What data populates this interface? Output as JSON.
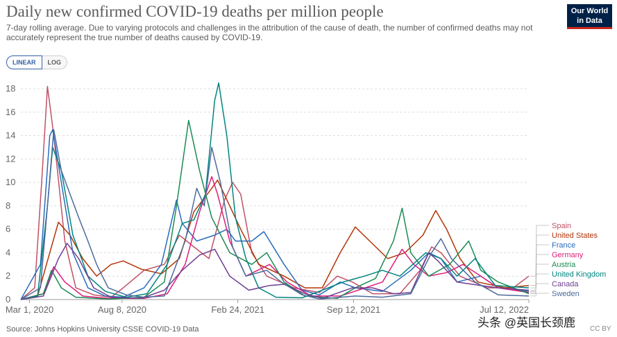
{
  "header": {
    "title": "Daily new confirmed COVID-19 deaths per million people",
    "subtitle": "7-day rolling average. Due to varying protocols and challenges in the attribution of the cause of death, the number of confirmed deaths may not accurately represent the true number of deaths caused by COVID-19.",
    "logo": [
      "Our World",
      "in Data"
    ]
  },
  "toggle": {
    "linear": "LINEAR",
    "log": "LOG",
    "selected": "LINEAR"
  },
  "footer": {
    "source": "Source: Johns Hopkins University CSSE COVID-19 Data",
    "license": "CC BY"
  },
  "watermark": "头条 @英国长颈鹿",
  "chart_data": {
    "type": "line",
    "x_ticks": [
      "Mar 1, 2020",
      "Aug 8, 2020",
      "Feb 24, 2021",
      "Sep 12, 2021",
      "Jul 12, 2022"
    ],
    "x_range": [
      "2020-02-15",
      "2022-07-12"
    ],
    "ylim": [
      0,
      18
    ],
    "y_ticks": [
      0,
      2,
      4,
      6,
      8,
      10,
      12,
      14,
      16,
      18
    ],
    "grid": "horizontal dashed",
    "legend_position": "right",
    "series": [
      {
        "name": "Spain",
        "color": "#c15065",
        "points": [
          [
            "2020-02-15",
            0
          ],
          [
            "2020-03-10",
            1
          ],
          [
            "2020-03-22",
            10
          ],
          [
            "2020-04-01",
            18.2
          ],
          [
            "2020-04-12",
            14
          ],
          [
            "2020-05-01",
            5
          ],
          [
            "2020-05-20",
            1
          ],
          [
            "2020-06-20",
            0.4
          ],
          [
            "2020-07-20",
            0.2
          ],
          [
            "2020-08-10",
            1
          ],
          [
            "2020-09-15",
            2.5
          ],
          [
            "2020-10-20",
            3
          ],
          [
            "2020-11-15",
            5.5
          ],
          [
            "2020-12-10",
            4.5
          ],
          [
            "2021-01-05",
            3.5
          ],
          [
            "2021-02-01",
            8.5
          ],
          [
            "2021-02-15",
            10
          ],
          [
            "2021-03-01",
            9
          ],
          [
            "2021-03-20",
            4
          ],
          [
            "2021-04-15",
            2
          ],
          [
            "2021-06-01",
            1
          ],
          [
            "2021-07-15",
            0.6
          ],
          [
            "2021-08-15",
            2
          ],
          [
            "2021-09-10",
            1.5
          ],
          [
            "2021-10-15",
            0.5
          ],
          [
            "2021-12-01",
            0.5
          ],
          [
            "2022-01-05",
            2.5
          ],
          [
            "2022-01-25",
            4.5
          ],
          [
            "2022-02-10",
            4
          ],
          [
            "2022-03-15",
            2
          ],
          [
            "2022-05-01",
            1
          ],
          [
            "2022-06-15",
            1
          ],
          [
            "2022-07-12",
            2
          ]
        ]
      },
      {
        "name": "United States",
        "color": "#b13507",
        "points": [
          [
            "2020-02-15",
            0
          ],
          [
            "2020-03-15",
            0.3
          ],
          [
            "2020-04-05",
            4
          ],
          [
            "2020-04-20",
            6.6
          ],
          [
            "2020-05-10",
            5.5
          ],
          [
            "2020-06-01",
            3.5
          ],
          [
            "2020-06-25",
            2
          ],
          [
            "2020-07-20",
            3
          ],
          [
            "2020-08-10",
            3.3
          ],
          [
            "2020-09-10",
            2.6
          ],
          [
            "2020-10-15",
            2.2
          ],
          [
            "2020-11-15",
            3.5
          ],
          [
            "2020-12-10",
            7.5
          ],
          [
            "2021-01-10",
            9.5
          ],
          [
            "2021-01-20",
            10.2
          ],
          [
            "2021-02-10",
            8
          ],
          [
            "2021-03-01",
            6
          ],
          [
            "2021-04-01",
            3
          ],
          [
            "2021-05-15",
            2
          ],
          [
            "2021-06-20",
            1
          ],
          [
            "2021-07-20",
            1
          ],
          [
            "2021-08-20",
            4
          ],
          [
            "2021-09-15",
            6.2
          ],
          [
            "2021-10-10",
            5
          ],
          [
            "2021-11-10",
            3.5
          ],
          [
            "2021-12-10",
            4
          ],
          [
            "2022-01-10",
            5.5
          ],
          [
            "2022-02-01",
            7.6
          ],
          [
            "2022-02-20",
            6
          ],
          [
            "2022-03-15",
            3.5
          ],
          [
            "2022-04-15",
            1.5
          ],
          [
            "2022-06-01",
            1
          ],
          [
            "2022-07-12",
            1.2
          ]
        ]
      },
      {
        "name": "France",
        "color": "#286bbb",
        "points": [
          [
            "2020-02-15",
            0
          ],
          [
            "2020-03-20",
            3
          ],
          [
            "2020-04-05",
            14
          ],
          [
            "2020-04-10",
            14.5
          ],
          [
            "2020-04-25",
            10
          ],
          [
            "2020-05-15",
            4
          ],
          [
            "2020-06-10",
            1
          ],
          [
            "2020-07-10",
            0.3
          ],
          [
            "2020-08-10",
            0.2
          ],
          [
            "2020-09-15",
            1
          ],
          [
            "2020-10-15",
            3
          ],
          [
            "2020-11-10",
            8.5
          ],
          [
            "2020-11-20",
            6.5
          ],
          [
            "2020-12-15",
            5
          ],
          [
            "2021-01-15",
            5.5
          ],
          [
            "2021-02-05",
            6
          ],
          [
            "2021-02-20",
            5
          ],
          [
            "2021-03-20",
            5
          ],
          [
            "2021-04-10",
            5.8
          ],
          [
            "2021-05-15",
            3
          ],
          [
            "2021-06-15",
            0.8
          ],
          [
            "2021-07-15",
            0.4
          ],
          [
            "2021-08-20",
            1.5
          ],
          [
            "2021-09-15",
            1
          ],
          [
            "2021-11-01",
            0.7
          ],
          [
            "2021-12-20",
            2.5
          ],
          [
            "2022-01-20",
            4
          ],
          [
            "2022-02-10",
            3.5
          ],
          [
            "2022-03-10",
            1.5
          ],
          [
            "2022-04-20",
            2
          ],
          [
            "2022-05-20",
            1
          ],
          [
            "2022-07-12",
            0.7
          ]
        ]
      },
      {
        "name": "Germany",
        "color": "#dc1e7b",
        "points": [
          [
            "2020-02-15",
            0
          ],
          [
            "2020-03-25",
            0.5
          ],
          [
            "2020-04-12",
            2.8
          ],
          [
            "2020-05-01",
            1.5
          ],
          [
            "2020-06-01",
            0.3
          ],
          [
            "2020-07-15",
            0.1
          ],
          [
            "2020-09-15",
            0.1
          ],
          [
            "2020-10-25",
            0.5
          ],
          [
            "2020-11-25",
            3
          ],
          [
            "2020-12-20",
            7.5
          ],
          [
            "2021-01-10",
            10.5
          ],
          [
            "2021-01-20",
            9
          ],
          [
            "2021-02-10",
            5
          ],
          [
            "2021-03-10",
            2
          ],
          [
            "2021-04-20",
            3
          ],
          [
            "2021-05-20",
            1.5
          ],
          [
            "2021-07-01",
            0.3
          ],
          [
            "2021-08-20",
            0.3
          ],
          [
            "2021-09-20",
            0.8
          ],
          [
            "2021-11-01",
            1.5
          ],
          [
            "2021-12-05",
            4.3
          ],
          [
            "2021-12-25",
            3
          ],
          [
            "2022-01-20",
            2
          ],
          [
            "2022-02-20",
            2.3
          ],
          [
            "2022-03-20",
            3
          ],
          [
            "2022-04-20",
            2
          ],
          [
            "2022-05-20",
            1
          ],
          [
            "2022-07-12",
            0.6
          ]
        ]
      },
      {
        "name": "Austria",
        "color": "#1a8a53",
        "points": [
          [
            "2020-02-15",
            0
          ],
          [
            "2020-03-25",
            0.5
          ],
          [
            "2020-04-08",
            2.5
          ],
          [
            "2020-04-25",
            1
          ],
          [
            "2020-05-20",
            0.2
          ],
          [
            "2020-07-15",
            0.05
          ],
          [
            "2020-09-15",
            0.2
          ],
          [
            "2020-10-20",
            1.5
          ],
          [
            "2020-11-10",
            8
          ],
          [
            "2020-12-01",
            15.3
          ],
          [
            "2020-12-20",
            11
          ],
          [
            "2021-01-10",
            7
          ],
          [
            "2021-02-10",
            4
          ],
          [
            "2021-03-20",
            3
          ],
          [
            "2021-04-15",
            4
          ],
          [
            "2021-05-15",
            1.5
          ],
          [
            "2021-06-20",
            0.3
          ],
          [
            "2021-08-15",
            0.1
          ],
          [
            "2021-09-15",
            1
          ],
          [
            "2021-10-20",
            1.8
          ],
          [
            "2021-11-20",
            5
          ],
          [
            "2021-12-05",
            7.8
          ],
          [
            "2021-12-20",
            4
          ],
          [
            "2022-01-20",
            2
          ],
          [
            "2022-02-25",
            3
          ],
          [
            "2022-03-30",
            5
          ],
          [
            "2022-04-20",
            2.5
          ],
          [
            "2022-05-20",
            1.5
          ],
          [
            "2022-07-12",
            0.5
          ]
        ]
      },
      {
        "name": "United Kingdom",
        "color": "#00847e",
        "points": [
          [
            "2020-02-15",
            0
          ],
          [
            "2020-03-15",
            0.3
          ],
          [
            "2020-04-01",
            8
          ],
          [
            "2020-04-10",
            13
          ],
          [
            "2020-04-25",
            11
          ],
          [
            "2020-05-15",
            5.5
          ],
          [
            "2020-06-10",
            2
          ],
          [
            "2020-07-10",
            0.7
          ],
          [
            "2020-08-15",
            0.2
          ],
          [
            "2020-09-20",
            0.5
          ],
          [
            "2020-10-25",
            3
          ],
          [
            "2020-11-20",
            6.5
          ],
          [
            "2020-12-10",
            6.8
          ],
          [
            "2020-12-30",
            9
          ],
          [
            "2021-01-15",
            17
          ],
          [
            "2021-01-22",
            18.5
          ],
          [
            "2021-02-05",
            14
          ],
          [
            "2021-02-20",
            7
          ],
          [
            "2021-03-10",
            3.5
          ],
          [
            "2021-04-01",
            1
          ],
          [
            "2021-05-01",
            0.2
          ],
          [
            "2021-06-15",
            0.15
          ],
          [
            "2021-07-20",
            0.8
          ],
          [
            "2021-08-25",
            1.5
          ],
          [
            "2021-10-01",
            2
          ],
          [
            "2021-11-01",
            2.5
          ],
          [
            "2021-12-01",
            2
          ],
          [
            "2022-01-15",
            4
          ],
          [
            "2022-02-10",
            3.5
          ],
          [
            "2022-03-10",
            2
          ],
          [
            "2022-04-10",
            3.5
          ],
          [
            "2022-05-15",
            1.2
          ],
          [
            "2022-07-12",
            1
          ]
        ]
      },
      {
        "name": "Canada",
        "color": "#6d3e91",
        "points": [
          [
            "2020-02-15",
            0
          ],
          [
            "2020-03-25",
            0.3
          ],
          [
            "2020-04-20",
            3.5
          ],
          [
            "2020-05-05",
            4.8
          ],
          [
            "2020-05-25",
            3.5
          ],
          [
            "2020-06-20",
            1
          ],
          [
            "2020-07-20",
            0.2
          ],
          [
            "2020-09-10",
            0.1
          ],
          [
            "2020-10-20",
            0.8
          ],
          [
            "2020-11-20",
            2.5
          ],
          [
            "2020-12-20",
            3.8
          ],
          [
            "2021-01-15",
            4.3
          ],
          [
            "2021-02-10",
            2
          ],
          [
            "2021-03-15",
            0.8
          ],
          [
            "2021-04-20",
            1.2
          ],
          [
            "2021-05-15",
            1.3
          ],
          [
            "2021-06-20",
            0.5
          ],
          [
            "2021-07-20",
            0.1
          ],
          [
            "2021-09-10",
            1
          ],
          [
            "2021-10-15",
            1
          ],
          [
            "2021-11-20",
            0.5
          ],
          [
            "2021-12-20",
            0.6
          ],
          [
            "2022-01-20",
            4
          ],
          [
            "2022-02-05",
            3.3
          ],
          [
            "2022-03-10",
            1.5
          ],
          [
            "2022-04-20",
            1.2
          ],
          [
            "2022-05-20",
            1
          ],
          [
            "2022-07-12",
            0.8
          ]
        ]
      },
      {
        "name": "Sweden",
        "color": "#4c6a9c",
        "points": [
          [
            "2020-02-15",
            0
          ],
          [
            "2020-03-20",
            1
          ],
          [
            "2020-04-01",
            8
          ],
          [
            "2020-04-12",
            14.5
          ],
          [
            "2020-04-25",
            11
          ],
          [
            "2020-05-10",
            9
          ],
          [
            "2020-05-25",
            7
          ],
          [
            "2020-06-10",
            5
          ],
          [
            "2020-06-25",
            3
          ],
          [
            "2020-07-15",
            1
          ],
          [
            "2020-08-15",
            0.4
          ],
          [
            "2020-09-15",
            0.2
          ],
          [
            "2020-10-20",
            0.3
          ],
          [
            "2020-11-25",
            5
          ],
          [
            "2020-12-15",
            9.5
          ],
          [
            "2020-12-28",
            8
          ],
          [
            "2021-01-10",
            13
          ],
          [
            "2021-01-25",
            10
          ],
          [
            "2021-02-15",
            4.5
          ],
          [
            "2021-03-10",
            2
          ],
          [
            "2021-04-15",
            2.5
          ],
          [
            "2021-05-10",
            1.5
          ],
          [
            "2021-06-15",
            0.4
          ],
          [
            "2021-07-15",
            0.05
          ],
          [
            "2021-09-15",
            0.3
          ],
          [
            "2021-11-01",
            0.2
          ],
          [
            "2021-12-20",
            0.5
          ],
          [
            "2022-01-25",
            4
          ],
          [
            "2022-02-10",
            5.2
          ],
          [
            "2022-02-28",
            3.5
          ],
          [
            "2022-04-10",
            1.5
          ],
          [
            "2022-05-20",
            0.4
          ],
          [
            "2022-07-12",
            0.3
          ]
        ]
      }
    ]
  }
}
